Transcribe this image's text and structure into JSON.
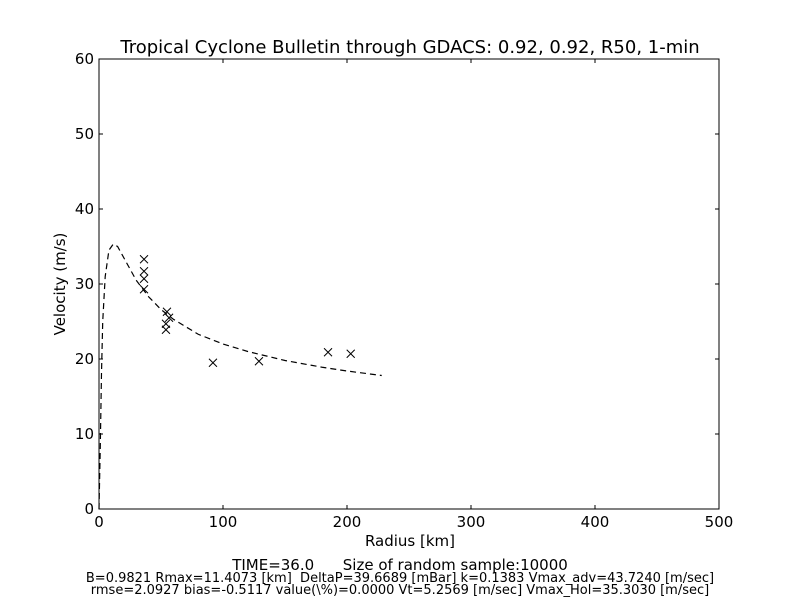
{
  "chart_data": {
    "type": "line",
    "title": "Tropical Cyclone Bulletin through GDACS: 0.92, 0.92, R50, 1-min",
    "x_label": "Radius [km]",
    "y_label": "Velocity (m/s)",
    "xlim": [
      0,
      500
    ],
    "xticks": [
      0,
      100,
      200,
      300,
      400,
      500
    ],
    "ylim": [
      0,
      60
    ],
    "yticks": [
      0,
      10,
      20,
      30,
      40,
      50,
      60
    ],
    "series": [
      {
        "color": "#000000",
        "marker": "x",
        "dashed": false,
        "x": [
          36.3,
          36.3,
          36.3,
          36.3,
          54.8,
          56.5,
          54,
          54,
          91.9,
          129,
          184.7,
          203
        ],
        "values": [
          33.3,
          31.7,
          30.7,
          29.3,
          26.3,
          25.5,
          24.7,
          23.9,
          19.5,
          19.7,
          20.9,
          20.7
        ]
      },
      {
        "color": "#000000",
        "marker": null,
        "dashed": true,
        "x": [
          0,
          1,
          2,
          3,
          5,
          8,
          11.4,
          15,
          20,
          30,
          40,
          50,
          60,
          80,
          100,
          120,
          150,
          180,
          200,
          228
        ],
        "values": [
          0,
          8,
          18,
          25,
          31,
          34.5,
          35.3,
          35,
          33.5,
          30.5,
          28.3,
          26.6,
          25.3,
          23.3,
          22,
          21,
          19.8,
          18.9,
          18.4,
          17.8
        ]
      }
    ],
    "annotations": [
      "TIME=36.0      Size of random sample:10000",
      "B=0.9821 Rmax=11.4073 [km]  DeltaP=39.6689 [mBar] k=0.1383 Vmax_adv=43.7240 [m/sec]",
      "rmse=2.0927 bias=-0.5117 value(\\%)=0.0000 Vt=5.2569 [m/sec] Vmax_Hol=35.3030 [m/sec]"
    ]
  }
}
